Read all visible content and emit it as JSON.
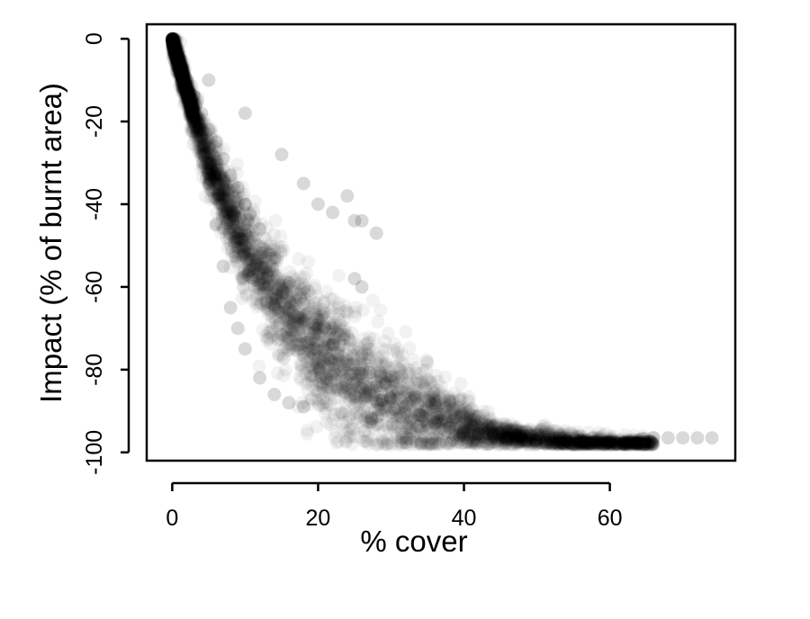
{
  "chart_data": {
    "type": "scatter",
    "title": "",
    "xlabel": "% cover",
    "ylabel": "Impact (% of burnt area)",
    "xlim": [
      -3.5,
      77.2
    ],
    "ylim": [
      -102,
      3.5
    ],
    "x_ticks": [
      0,
      20,
      40,
      60
    ],
    "y_ticks": [
      0,
      -20,
      -40,
      -60,
      -80,
      -100
    ],
    "x_tick_labels": [
      "0",
      "20",
      "40",
      "60"
    ],
    "y_tick_labels": [
      "0",
      "-20",
      "-40",
      "-60",
      "-80",
      "-100"
    ],
    "grid": false,
    "legend": "none",
    "marker_color": "#000000",
    "marker_opacity": 0.05,
    "series": [
      {
        "description_points": "dense band of semi-transparent points; representative points below",
        "points": [
          [
            0,
            0
          ],
          [
            0.5,
            -2
          ],
          [
            1,
            -5
          ],
          [
            2,
            -10
          ],
          [
            3,
            -14
          ],
          [
            4,
            -18
          ],
          [
            5,
            -22
          ],
          [
            6,
            -25
          ],
          [
            7,
            -29
          ],
          [
            8,
            -33
          ],
          [
            9,
            -36
          ],
          [
            10,
            -40
          ],
          [
            12,
            -46
          ],
          [
            14,
            -53
          ],
          [
            16,
            -59
          ],
          [
            18,
            -64
          ],
          [
            20,
            -70
          ],
          [
            22,
            -74
          ],
          [
            24,
            -78
          ],
          [
            26,
            -81
          ],
          [
            28,
            -84
          ],
          [
            30,
            -87
          ],
          [
            32,
            -89
          ],
          [
            34,
            -91
          ],
          [
            36,
            -93
          ],
          [
            38,
            -94
          ],
          [
            40,
            -95
          ],
          [
            42,
            -95.5
          ],
          [
            44,
            -96
          ],
          [
            46,
            -96.5
          ],
          [
            48,
            -97
          ],
          [
            50,
            -97
          ],
          [
            52,
            -97
          ],
          [
            54,
            -97.2
          ],
          [
            56,
            -97.3
          ],
          [
            58,
            -97.4
          ],
          [
            60,
            -97.5
          ],
          [
            62,
            -97.5
          ],
          [
            64,
            -97.2
          ],
          [
            66,
            -96.5
          ],
          [
            68,
            -96.5
          ],
          [
            70,
            -96.5
          ],
          [
            72,
            -96.5
          ],
          [
            74,
            -96.5
          ],
          [
            3,
            -20
          ],
          [
            5,
            -35
          ],
          [
            6,
            -45
          ],
          [
            7,
            -55
          ],
          [
            8,
            -65
          ],
          [
            9,
            -70
          ],
          [
            10,
            -75
          ],
          [
            12,
            -82
          ],
          [
            14,
            -86
          ],
          [
            16,
            -88
          ],
          [
            18,
            -89
          ],
          [
            5,
            -10
          ],
          [
            10,
            -18
          ],
          [
            15,
            -28
          ],
          [
            18,
            -35
          ],
          [
            20,
            -40
          ],
          [
            22,
            -42
          ],
          [
            24,
            -38
          ],
          [
            25,
            -44
          ],
          [
            26,
            -44
          ],
          [
            28,
            -47
          ],
          [
            25,
            -58
          ],
          [
            26,
            -60
          ]
        ]
      }
    ]
  }
}
